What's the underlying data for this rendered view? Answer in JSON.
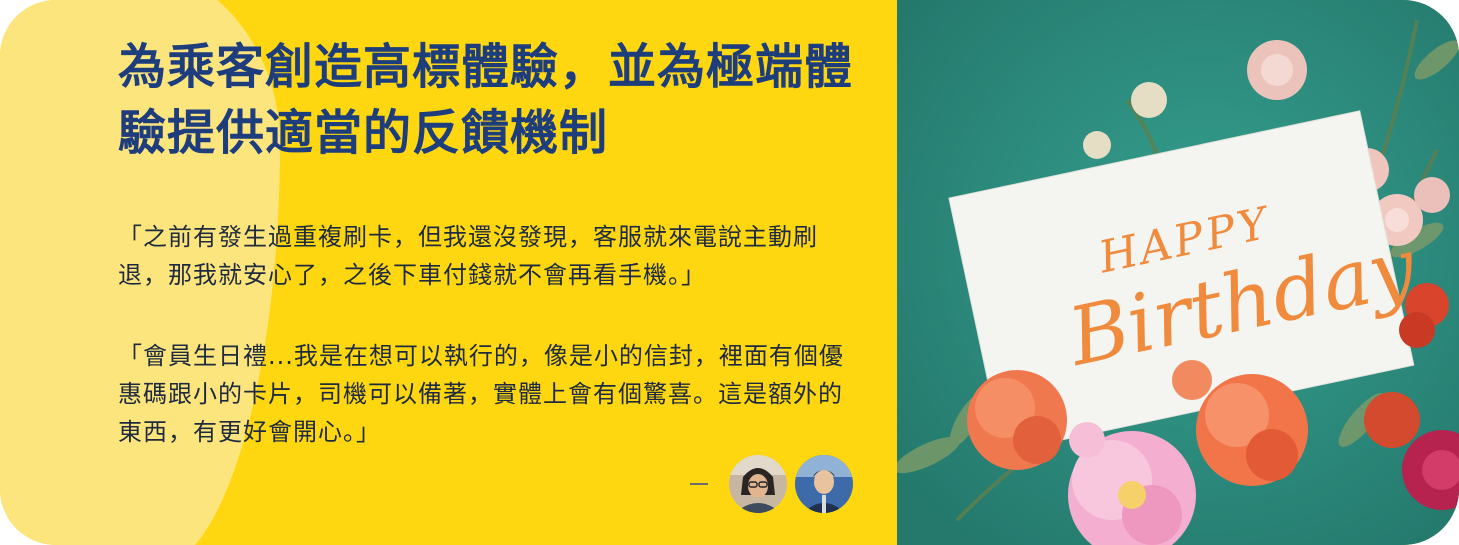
{
  "headline": "為乘客創造高標體驗，並為極端體驗提供適當的反饋機制",
  "quotes": [
    "「之前有發生過重複刷卡，但我還沒發現，客服就來電說主動刷退，那我就安心了，之後下車付錢就不會再看手機。」",
    "「會員生日禮...我是在想可以執行的，像是小的信封，裡面有個優惠碼跟小的卡片，司機可以備著，實體上會有個驚喜。這是額外的東西，有更好會開心。」"
  ],
  "attribution": {
    "avatars": [
      "person-with-glasses-avatar",
      "man-in-car-avatar"
    ]
  },
  "image": {
    "card_text_line1": "HAPPY",
    "card_text_line2": "Birthday"
  },
  "colors": {
    "panel_yellow": "#FFD711",
    "blob_yellow": "#FDE57E",
    "headline_blue": "#1D3D7D",
    "photo_teal": "#2E8C7E",
    "card_ink_orange": "#F08A3C"
  }
}
